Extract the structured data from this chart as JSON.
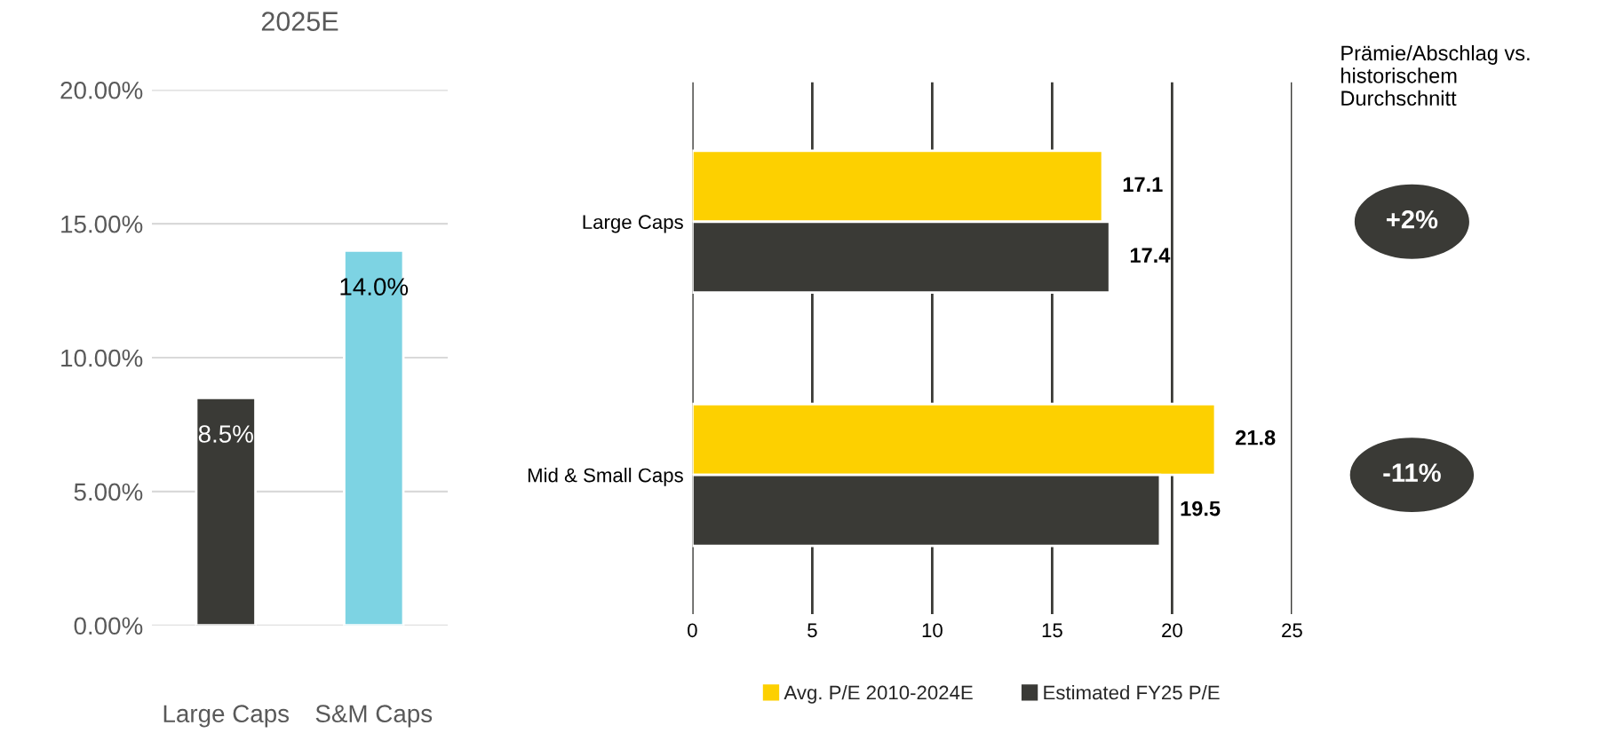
{
  "chart_data": [
    {
      "type": "bar",
      "title": "2025E",
      "categories": [
        "Large Caps",
        "S&M Caps"
      ],
      "values": [
        8.5,
        14.0
      ],
      "colors": [
        "#3a3a36",
        "#7dd3e3"
      ],
      "value_labels": [
        "8.5%",
        "14.0%"
      ],
      "ylim": [
        0,
        20
      ],
      "yticks": [
        {
          "value": 0,
          "label": "0.00%"
        },
        {
          "value": 5,
          "label": "5.00%"
        },
        {
          "value": 10,
          "label": "10.00%"
        },
        {
          "value": 15,
          "label": "15.00%"
        },
        {
          "value": 20,
          "label": "20.00%"
        }
      ],
      "grid": "y"
    },
    {
      "type": "bar",
      "orientation": "horizontal",
      "categories": [
        "Large Caps",
        "Mid & Small Caps"
      ],
      "series": [
        {
          "name": "Avg. P/E 2010-2024E",
          "color": "#fdd000",
          "values": [
            17.1,
            21.8
          ]
        },
        {
          "name": "Estimated FY25 P/E",
          "color": "#3a3a36",
          "values": [
            17.4,
            19.5
          ]
        }
      ],
      "xlim": [
        0,
        25
      ],
      "xticks": [
        0,
        5,
        10,
        15,
        20,
        25
      ],
      "grid": "x",
      "legend": "bottom",
      "data_labels": true,
      "annotations": [
        "Prämie/Abschlag vs. historischem Durchschnitt",
        "+2%",
        "-11%"
      ]
    }
  ]
}
